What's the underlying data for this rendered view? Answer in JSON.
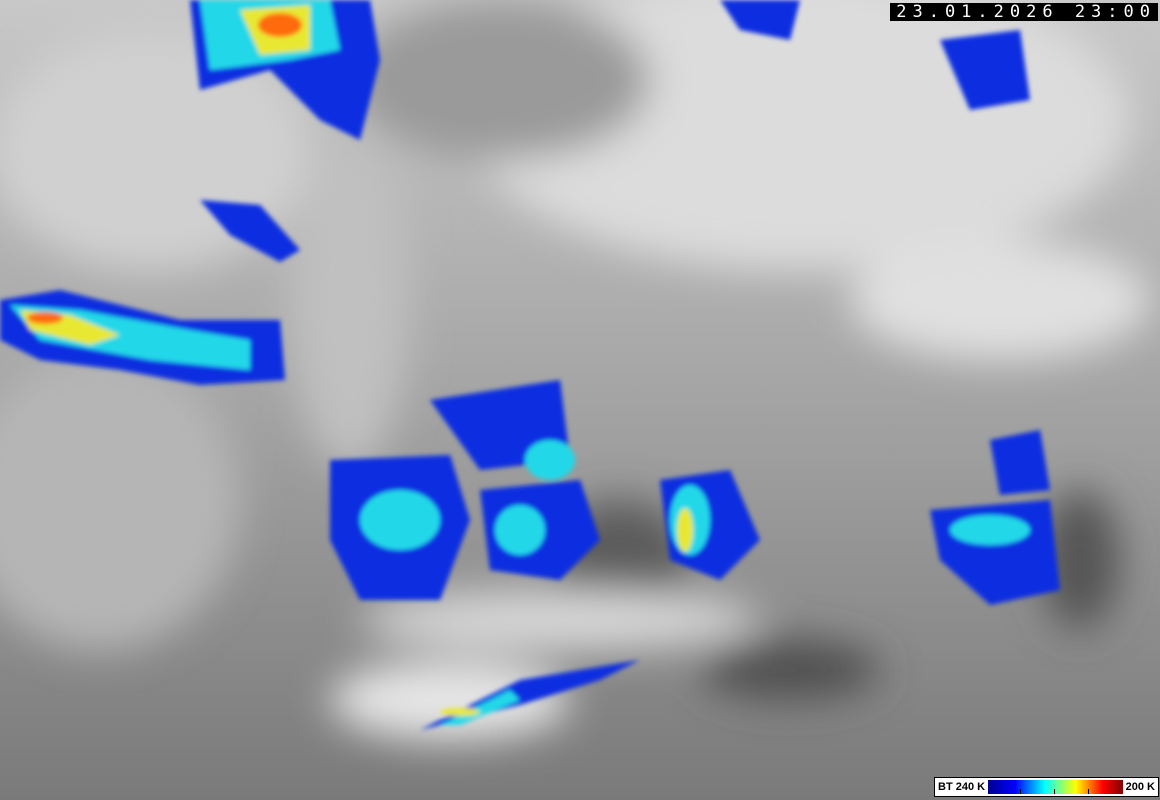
{
  "image": {
    "kind": "infrared satellite image",
    "timestamp": "23.01.2026 23:00"
  },
  "legend": {
    "left_label": "BT 240 K",
    "right_label": "200 K",
    "colors": [
      "#000090",
      "#0000ff",
      "#00ffff",
      "#ffff00",
      "#ff0000",
      "#800000"
    ]
  }
}
